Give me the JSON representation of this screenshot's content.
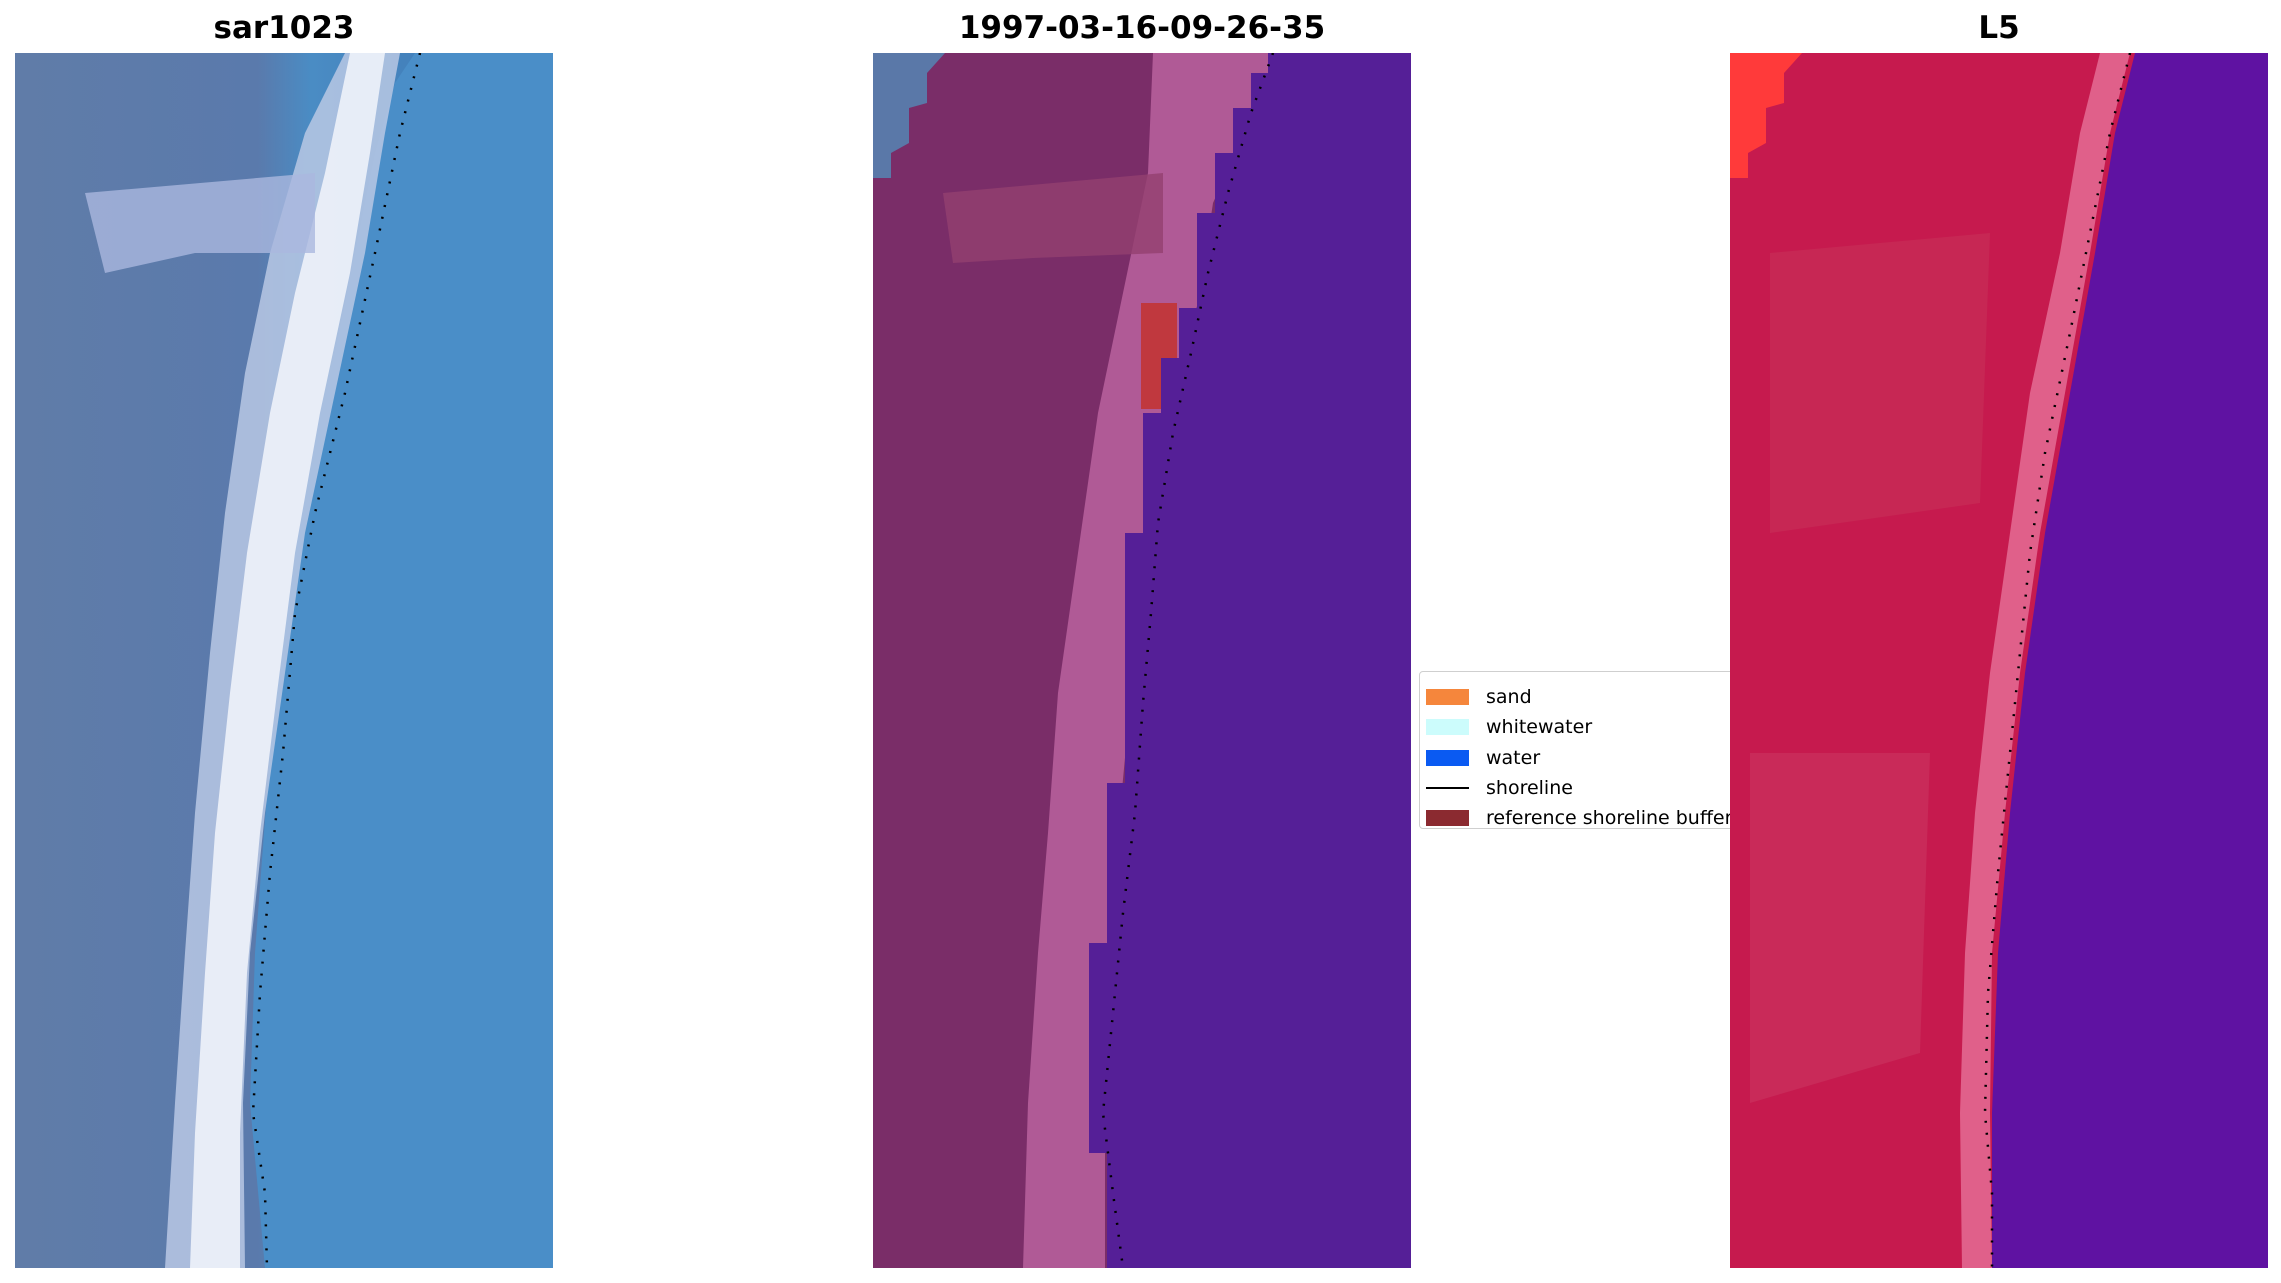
{
  "panels": [
    {
      "id": "sar",
      "title": "sar1023"
    },
    {
      "id": "date",
      "title": "1997-03-16-09-26-35"
    },
    {
      "id": "l5",
      "title": "L5"
    }
  ],
  "legend": {
    "items": [
      {
        "label": "sand",
        "color": "#f5863c",
        "kind": "patch"
      },
      {
        "label": "whitewater",
        "color": "#ccfcfc",
        "kind": "patch"
      },
      {
        "label": "water",
        "color": "#0a5af2",
        "kind": "patch"
      },
      {
        "label": "shoreline",
        "color": "#000000",
        "kind": "line"
      },
      {
        "label": "reference shoreline buffer",
        "color": "#8b2a30",
        "kind": "patch"
      }
    ]
  },
  "colors": {
    "sar_land": "#5a78a8",
    "sar_water": "#3f8cc6",
    "sar_beach": "#e2e8f4",
    "class_land": "#7a2d68",
    "class_water": "#551f97",
    "class_sandbar": "#b45896",
    "class_buffer": "#c0383e",
    "l5_land": "#c61a4e",
    "l5_beach": "#e0608a",
    "l5_water": "#5f12a2",
    "l5_sand": "#ff3a3a"
  }
}
